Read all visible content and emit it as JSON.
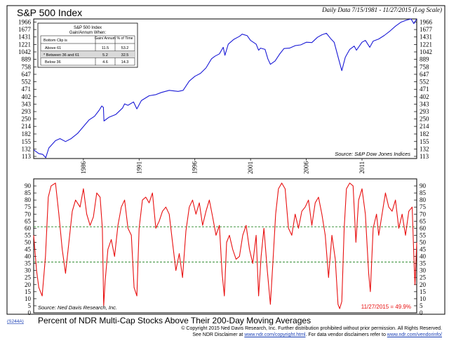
{
  "chart_data": [
    {
      "type": "line",
      "title": "S&P 500 Index",
      "subtitle": "Daily Data 7/15/1981 - 11/27/2015 (Log Scale)",
      "source": "Source: S&P Dow Jones Indices",
      "scale": "log",
      "ylim": [
        108,
        2100
      ],
      "y_ticks": [
        113,
        132,
        155,
        182,
        214,
        250,
        293,
        343,
        402,
        471,
        552,
        647,
        758,
        889,
        1042,
        1221,
        1431,
        1677,
        1966
      ],
      "x_ticks": [
        "1986",
        "1991",
        "1996",
        "2001",
        "2006",
        "2011"
      ],
      "x_tick_positions": [
        1986,
        1991,
        1996,
        2001,
        2006,
        2011
      ],
      "xlim": [
        1981.54,
        2015.91
      ],
      "grid": false,
      "color": "#1a1ad6",
      "series": [
        {
          "x": [
            1981.54,
            1982.0,
            1982.35,
            1982.62,
            1982.9,
            1983.5,
            1983.9,
            1984.4,
            1984.9,
            1985.5,
            1985.95,
            1986.5,
            1987.0,
            1987.4,
            1987.65,
            1987.8,
            1987.85,
            1988.3,
            1988.9,
            1989.5,
            1989.7,
            1990.0,
            1990.5,
            1990.8,
            1991.2,
            1991.9,
            1992.5,
            1993.0,
            1993.7,
            1994.5,
            1994.95,
            1995.5,
            1996.0,
            1996.5,
            1997.0,
            1997.5,
            1997.8,
            1998.2,
            1998.55,
            1998.7,
            1999.0,
            1999.5,
            2000.0,
            2000.25,
            2000.7,
            2001.0,
            2001.5,
            2001.72,
            2001.9,
            2002.3,
            2002.55,
            2002.78,
            2003.2,
            2003.6,
            2004.0,
            2004.5,
            2005.0,
            2005.5,
            2006.0,
            2006.5,
            2007.0,
            2007.4,
            2007.8,
            2008.2,
            2008.5,
            2008.9,
            2009.19,
            2009.5,
            2009.9,
            2010.3,
            2010.5,
            2011.0,
            2011.3,
            2011.7,
            2012.0,
            2012.5,
            2013.0,
            2013.5,
            2014.0,
            2014.5,
            2015.0,
            2015.4,
            2015.65,
            2015.9
          ],
          "values": [
            130,
            120,
            118,
            110,
            135,
            158,
            165,
            155,
            165,
            185,
            210,
            245,
            265,
            300,
            330,
            320,
            240,
            260,
            275,
            315,
            345,
            335,
            360,
            310,
            370,
            410,
            420,
            440,
            460,
            450,
            460,
            560,
            620,
            660,
            740,
            900,
            950,
            1000,
            1150,
            970,
            1230,
            1360,
            1450,
            1520,
            1470,
            1330,
            1230,
            1080,
            1130,
            1100,
            900,
            800,
            860,
            990,
            1120,
            1130,
            1190,
            1210,
            1280,
            1270,
            1420,
            1500,
            1550,
            1380,
            1280,
            900,
            700,
            930,
            1100,
            1180,
            1080,
            1280,
            1330,
            1150,
            1310,
            1370,
            1480,
            1620,
            1800,
            1960,
            2050,
            2100,
            1900,
            2090
          ]
        }
      ],
      "table": {
        "title_line1": "S&P 500 Index",
        "title_line2": "Gain/Annum When:",
        "header_label": "Bottom Clip is",
        "header_gain": "Gain/ Annum",
        "header_time": "% of Time",
        "rows": [
          {
            "label": "Above 61",
            "gain": "11.5",
            "time": "53.2"
          },
          {
            "label": "* Between 36 and 61",
            "gain": "5.2",
            "time": "32.5"
          },
          {
            "label": "Below 36",
            "gain": "4.6",
            "time": "14.3"
          }
        ]
      }
    },
    {
      "type": "line",
      "title": "Percent of NDR Multi-Cap Stocks Above Their 200-Day Moving Averages",
      "source": "Source: Ned Davis Research, Inc.",
      "ylim": [
        0,
        95
      ],
      "y_ticks": [
        0,
        5,
        10,
        15,
        20,
        25,
        30,
        35,
        40,
        45,
        50,
        55,
        60,
        65,
        70,
        75,
        80,
        85,
        90
      ],
      "xlim": [
        1981.54,
        2015.91
      ],
      "reference_lines": [
        61,
        36
      ],
      "reference_color": "#2e8b2e",
      "annotation": "11/27/2015 = 49.9%",
      "color": "#e81010",
      "series": [
        {
          "x": [
            1981.54,
            1981.8,
            1982.0,
            1982.3,
            1982.6,
            1982.85,
            1983.1,
            1983.5,
            1983.8,
            1984.1,
            1984.4,
            1984.7,
            1985.0,
            1985.3,
            1985.7,
            1986.0,
            1986.3,
            1986.6,
            1986.9,
            1987.2,
            1987.5,
            1987.7,
            1987.82,
            1987.95,
            1988.2,
            1988.5,
            1988.8,
            1989.1,
            1989.4,
            1989.7,
            1990.0,
            1990.3,
            1990.55,
            1990.8,
            1991.0,
            1991.3,
            1991.6,
            1991.9,
            1992.2,
            1992.5,
            1992.8,
            1993.1,
            1993.4,
            1993.7,
            1994.0,
            1994.3,
            1994.6,
            1994.9,
            1995.2,
            1995.5,
            1995.8,
            1996.1,
            1996.4,
            1996.7,
            1997.0,
            1997.3,
            1997.6,
            1997.9,
            1998.2,
            1998.45,
            1998.65,
            1998.85,
            1999.1,
            1999.4,
            1999.7,
            2000.0,
            2000.3,
            2000.6,
            2000.9,
            2001.2,
            2001.5,
            2001.72,
            2001.95,
            2002.2,
            2002.5,
            2002.78,
            2003.0,
            2003.25,
            2003.5,
            2003.8,
            2004.1,
            2004.4,
            2004.7,
            2005.0,
            2005.3,
            2005.6,
            2005.9,
            2006.2,
            2006.5,
            2006.8,
            2007.1,
            2007.4,
            2007.7,
            2008.0,
            2008.3,
            2008.6,
            2008.85,
            2009.0,
            2009.19,
            2009.4,
            2009.6,
            2009.9,
            2010.2,
            2010.45,
            2010.7,
            2011.0,
            2011.3,
            2011.6,
            2011.75,
            2012.0,
            2012.3,
            2012.5,
            2012.8,
            2013.1,
            2013.4,
            2013.7,
            2014.0,
            2014.3,
            2014.6,
            2014.9,
            2015.2,
            2015.5,
            2015.65,
            2015.75,
            2015.91
          ],
          "values": [
            55,
            30,
            18,
            12,
            40,
            82,
            90,
            92,
            70,
            45,
            28,
            50,
            72,
            80,
            75,
            88,
            70,
            62,
            68,
            85,
            82,
            60,
            5,
            22,
            45,
            52,
            40,
            62,
            75,
            80,
            60,
            55,
            18,
            12,
            60,
            80,
            82,
            78,
            85,
            60,
            65,
            72,
            75,
            70,
            50,
            30,
            42,
            25,
            58,
            75,
            80,
            70,
            78,
            62,
            72,
            80,
            68,
            55,
            62,
            28,
            12,
            50,
            55,
            45,
            38,
            40,
            55,
            62,
            45,
            35,
            55,
            12,
            40,
            60,
            30,
            6,
            35,
            70,
            88,
            92,
            88,
            60,
            55,
            70,
            60,
            72,
            75,
            80,
            62,
            78,
            82,
            70,
            55,
            25,
            55,
            38,
            6,
            3,
            8,
            60,
            88,
            92,
            90,
            50,
            80,
            88,
            70,
            28,
            15,
            60,
            70,
            55,
            70,
            85,
            75,
            72,
            80,
            60,
            70,
            55,
            72,
            75,
            40,
            20,
            49.9
          ]
        }
      ]
    }
  ],
  "footer": {
    "code": "(S244A)",
    "copyright": "© Copyright 2015 Ned Davis Research, Inc.  Further distribution prohibited without prior permission.  All Rights Reserved.",
    "disclaimer_prefix": "See NDR Disclaimer at ",
    "disclaimer_link": "www.ndr.com/copyright.html",
    "disclaimer_mid": ".  For data vendor disclaimers refer to ",
    "disclaimer_link2": "www.ndr.com/vendorinfo/"
  }
}
